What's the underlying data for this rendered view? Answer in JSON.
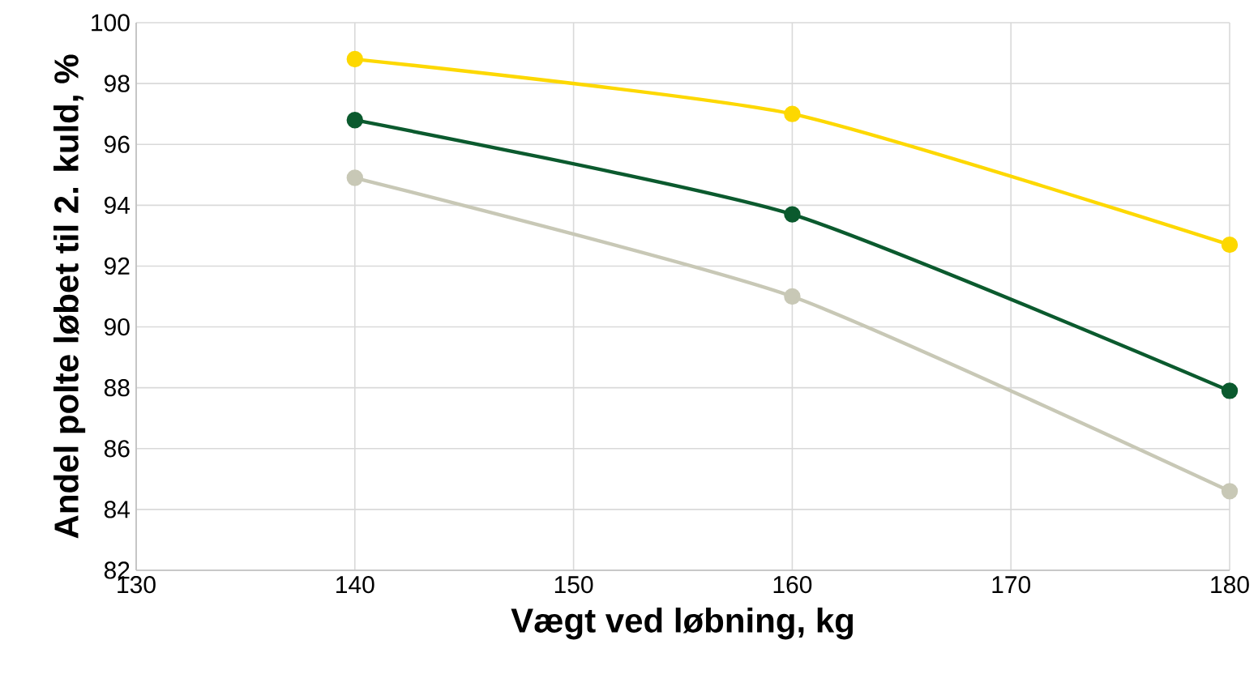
{
  "chart_data": {
    "type": "line",
    "xlabel": "Vægt ved løbning, kg",
    "ylabel": "Andel polte løbet til 2. kuld, %",
    "x": [
      140,
      160,
      180
    ],
    "series": [
      {
        "color": "#fdd800",
        "values": [
          98.8,
          97.0,
          92.7
        ]
      },
      {
        "color": "#0b5a2e",
        "values": [
          96.8,
          93.7,
          87.9
        ]
      },
      {
        "color": "#c8c8b6",
        "values": [
          94.9,
          91.0,
          84.6
        ]
      }
    ],
    "xlim": [
      130,
      180
    ],
    "xticks": [
      130,
      140,
      150,
      160,
      170,
      180
    ],
    "ylim": [
      82,
      100
    ],
    "yticks": [
      82,
      84,
      86,
      88,
      90,
      92,
      94,
      96,
      98,
      100
    ],
    "grid": true,
    "marker": "circle",
    "line_style": "solid"
  }
}
